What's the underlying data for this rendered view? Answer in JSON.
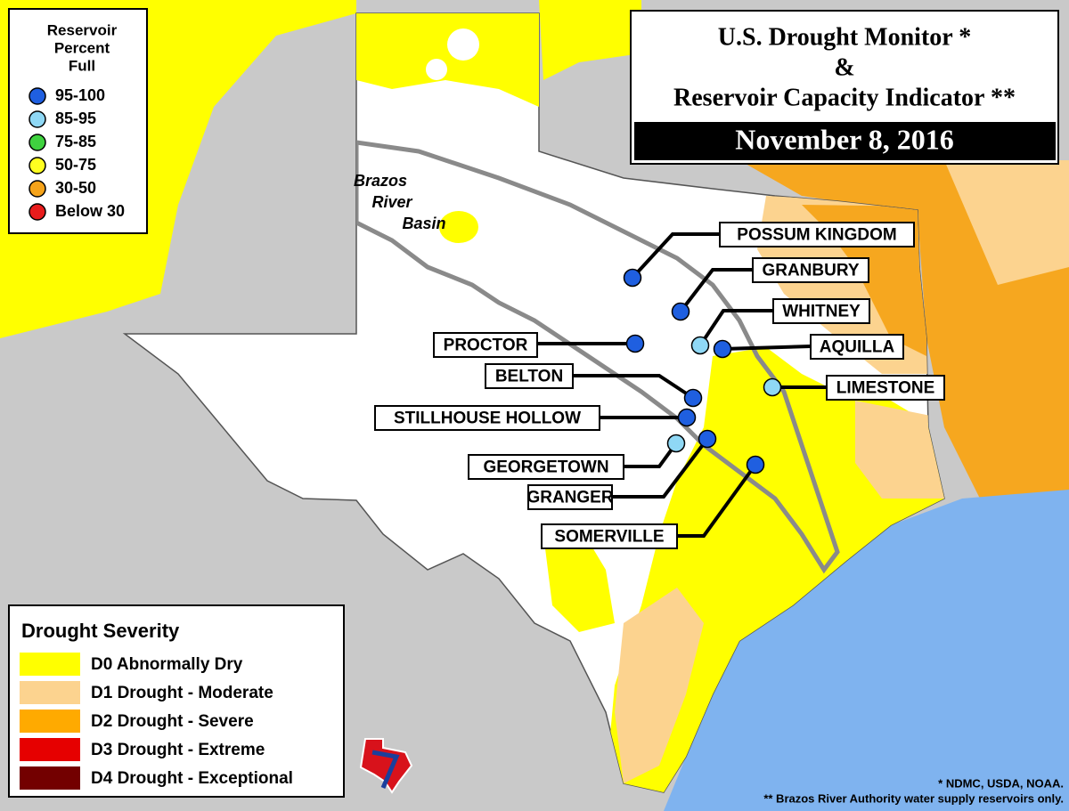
{
  "title": {
    "line1": "U.S. Drought Monitor *",
    "line2": "&",
    "line3": "Reservoir Capacity Indicator **",
    "date": "November 8, 2016"
  },
  "reservoir_legend": {
    "title_lines": [
      "Reservoir",
      "Percent",
      "Full"
    ],
    "items": [
      {
        "label": "95-100",
        "color": "#1f5fe0"
      },
      {
        "label": "85-95",
        "color": "#8fd8f5"
      },
      {
        "label": "75-85",
        "color": "#3fd23f"
      },
      {
        "label": "50-75",
        "color": "#ffff20"
      },
      {
        "label": "30-50",
        "color": "#f5a31a"
      },
      {
        "label": "Below 30",
        "color": "#e81c1c"
      }
    ]
  },
  "drought_legend": {
    "title": "Drought Severity",
    "items": [
      {
        "label": "D0 Abnormally Dry",
        "color": "#ffff00"
      },
      {
        "label": "D1 Drought - Moderate",
        "color": "#fcd38f"
      },
      {
        "label": "D2 Drought - Severe",
        "color": "#ffaa00"
      },
      {
        "label": "D3 Drought - Extreme",
        "color": "#e60000"
      },
      {
        "label": "D4 Drought - Exceptional",
        "color": "#730000"
      }
    ]
  },
  "basin_label": [
    "Brazos",
    "River",
    "Basin"
  ],
  "reservoirs": [
    {
      "name": "POSSUM KINGDOM",
      "color": "#1f5fe0"
    },
    {
      "name": "GRANBURY",
      "color": "#1f5fe0"
    },
    {
      "name": "WHITNEY",
      "color": "#8fd8f5"
    },
    {
      "name": "AQUILLA",
      "color": "#1f5fe0"
    },
    {
      "name": "PROCTOR",
      "color": "#1f5fe0"
    },
    {
      "name": "LIMESTONE",
      "color": "#8fd8f5"
    },
    {
      "name": "BELTON",
      "color": "#1f5fe0"
    },
    {
      "name": "STILLHOUSE HOLLOW",
      "color": "#1f5fe0"
    },
    {
      "name": "GEORGETOWN",
      "color": "#8fd8f5"
    },
    {
      "name": "GRANGER",
      "color": "#1f5fe0"
    },
    {
      "name": "SOMERVILLE",
      "color": "#1f5fe0"
    }
  ],
  "footnotes": [
    "* NDMC, USDA, NOAA.",
    "** Brazos River Authority water supply reservoirs only."
  ]
}
